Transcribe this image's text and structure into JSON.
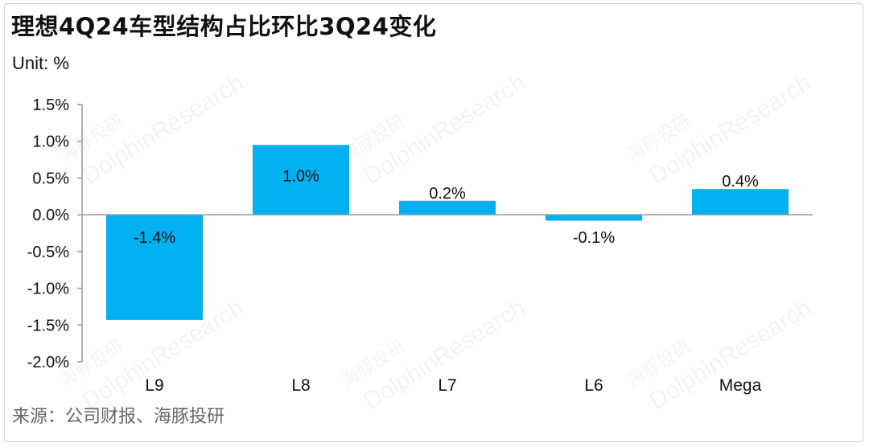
{
  "title": "理想4Q24车型结构占比环比3Q24变化",
  "unit_label": "Unit: %",
  "source": "来源：公司财报、海豚投研",
  "watermark": {
    "brand_cn": "海豚投研",
    "brand_en": "DolphinResearch"
  },
  "colors": {
    "bar": "#00b0f0",
    "axis": "#999999",
    "text": "#111111",
    "source_text": "#666666"
  },
  "chart_data": {
    "type": "bar",
    "title": "理想4Q24车型结构占比环比3Q24变化",
    "ylabel": "Unit: %",
    "xlabel": "",
    "categories": [
      "L9",
      "L8",
      "L7",
      "L6",
      "Mega"
    ],
    "values": [
      -1.43,
      0.95,
      0.19,
      -0.08,
      0.35
    ],
    "data_labels": [
      "-1.4%",
      "1.0%",
      "0.2%",
      "-0.1%",
      "0.4%"
    ],
    "ylim": [
      -2.0,
      1.5
    ],
    "yticks": [
      1.5,
      1.0,
      0.5,
      0.0,
      -0.5,
      -1.0,
      -1.5,
      -2.0
    ],
    "ytick_labels": [
      "1.5%",
      "1.0%",
      "0.5%",
      "0.0%",
      "-0.5%",
      "-1.0%",
      "-1.5%",
      "-2.0%"
    ],
    "grid": false,
    "legend": "none"
  }
}
